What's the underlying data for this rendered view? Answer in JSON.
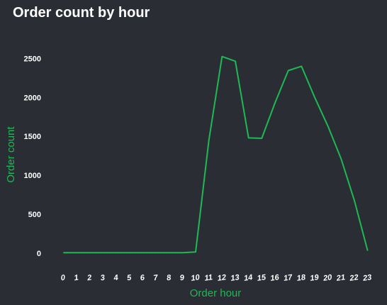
{
  "colors": {
    "background": "#2b2d34",
    "line": "#1db954",
    "text": "#ffffff",
    "axis_label": "#1db954"
  },
  "chart_data": {
    "type": "line",
    "title": "Order count by hour",
    "xlabel": "Order hour",
    "ylabel": "Order count",
    "x": [
      0,
      1,
      2,
      3,
      4,
      5,
      6,
      7,
      8,
      9,
      10,
      11,
      12,
      13,
      14,
      15,
      16,
      17,
      18,
      19,
      20,
      21,
      22,
      23
    ],
    "x_tick_labels": [
      "0",
      "1",
      "2",
      "3",
      "4",
      "5",
      "6",
      "7",
      "8",
      "9",
      "10",
      "11",
      "12",
      "13",
      "14",
      "15",
      "16",
      "17",
      "18",
      "19",
      "20",
      "21",
      "22",
      "23"
    ],
    "y_ticks": [
      0,
      500,
      1000,
      1500,
      2000,
      2500
    ],
    "y_tick_labels": [
      "0",
      "500",
      "1000",
      "1500",
      "2000",
      "2500"
    ],
    "series": [
      {
        "values": [
          5,
          5,
          5,
          5,
          5,
          5,
          5,
          5,
          5,
          5,
          15,
          1450,
          2525,
          2465,
          1480,
          1475,
          1930,
          2345,
          2400,
          2000,
          1630,
          1210,
          675,
          30
        ]
      }
    ],
    "xlim": [
      -0.5,
      23.5
    ],
    "ylim": [
      -120,
      2650
    ],
    "grid": false,
    "legend": "none"
  }
}
